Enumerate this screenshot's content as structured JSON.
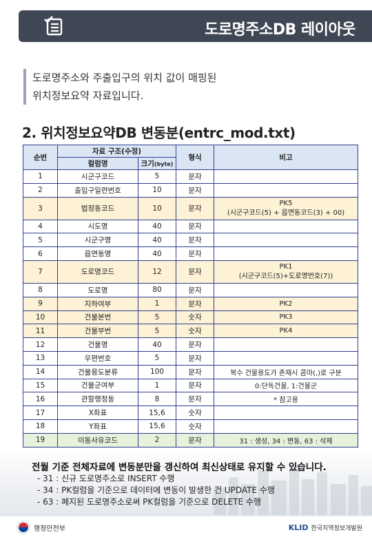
{
  "header": {
    "title": "도로명주소DB 레이아웃",
    "icon": "checklist-icon"
  },
  "intro": {
    "line1": "도로명주소와 주출입구의 위치 값이 매핑된",
    "line2": "위치정보요약 자료입니다."
  },
  "section_title": "2. 위치정보요약DB 변동분(entrc_mod.txt)",
  "table": {
    "headers": {
      "seq": "순번",
      "structure": "자료 구조(수정)",
      "column": "컬럼명",
      "size": "크기",
      "size_unit": "(byte)",
      "type": "형식",
      "note": "비고"
    },
    "rows": [
      {
        "no": "1",
        "name": "시군구코드",
        "size": "5",
        "type": "문자",
        "note": "",
        "note2": ""
      },
      {
        "no": "2",
        "name": "출입구일련번호",
        "size": "10",
        "type": "문자",
        "note": "",
        "note2": ""
      },
      {
        "no": "3",
        "name": "법정동코드",
        "size": "10",
        "type": "문자",
        "note": "PK5",
        "note2": "(시군구코드(5) + 읍면동코드(3) + 00)"
      },
      {
        "no": "4",
        "name": "시도명",
        "size": "40",
        "type": "문자",
        "note": "",
        "note2": ""
      },
      {
        "no": "5",
        "name": "시군구명",
        "size": "40",
        "type": "문자",
        "note": "",
        "note2": ""
      },
      {
        "no": "6",
        "name": "읍면동명",
        "size": "40",
        "type": "문자",
        "note": "",
        "note2": ""
      },
      {
        "no": "7",
        "name": "도로명코드",
        "size": "12",
        "type": "문자",
        "note": "PK1",
        "note2": "(시군구코드(5)+도로명번호(7))"
      },
      {
        "no": "8",
        "name": "도로명",
        "size": "80",
        "type": "문자",
        "note": "",
        "note2": ""
      },
      {
        "no": "9",
        "name": "지하여부",
        "size": "1",
        "type": "문자",
        "note": "PK2",
        "note2": ""
      },
      {
        "no": "10",
        "name": "건물본번",
        "size": "5",
        "type": "숫자",
        "note": "PK3",
        "note2": ""
      },
      {
        "no": "11",
        "name": "건물부번",
        "size": "5",
        "type": "숫자",
        "note": "PK4",
        "note2": ""
      },
      {
        "no": "12",
        "name": "건물명",
        "size": "40",
        "type": "문자",
        "note": "",
        "note2": ""
      },
      {
        "no": "13",
        "name": "우편번호",
        "size": "5",
        "type": "문자",
        "note": "",
        "note2": ""
      },
      {
        "no": "14",
        "name": "건물용도분류",
        "size": "100",
        "type": "문자",
        "note": "복수 건물용도가 존재시 콤마(,)로 구분",
        "note2": ""
      },
      {
        "no": "15",
        "name": "건물군여부",
        "size": "1",
        "type": "문자",
        "note": "0:단독건물, 1:건물군",
        "note2": ""
      },
      {
        "no": "16",
        "name": "관할행정동",
        "size": "8",
        "type": "문자",
        "note": "* 참고용",
        "note2": ""
      },
      {
        "no": "17",
        "name": "X좌표",
        "size": "15,6",
        "type": "숫자",
        "note": "",
        "note2": ""
      },
      {
        "no": "18",
        "name": "Y좌표",
        "size": "15,6",
        "type": "숫자",
        "note": "",
        "note2": ""
      },
      {
        "no": "19",
        "name": "이동사유코드",
        "size": "2",
        "type": "문자",
        "note": "31 : 생성, 34 : 변동, 63 : 삭제",
        "note2": ""
      }
    ]
  },
  "summary": "전월 기준 전체자료에 변동분만을 갱신하여 최신상태로 유지할 수 있습니다.",
  "bullets": [
    "- 31 : 신규 도로명주소로 INSERT 수행",
    "- 34 : PK컬럼을 기준으로 데이터에 변동이 발생한 건 UPDATE 수행",
    "- 63 : 폐지된 도로명주소로써 PK컬럼을 기준으로 DELETE 수행"
  ],
  "footer": {
    "left": "행정안전부",
    "right_logo": "KLID",
    "right_text": "한국지역정보개발원"
  },
  "colors": {
    "header_bg": "#3f4654",
    "table_border": "#2f3e8c",
    "table_header": "#dbe6f5",
    "highlight_row": "#fdf1d6",
    "green_row": "#e7f1dc"
  }
}
